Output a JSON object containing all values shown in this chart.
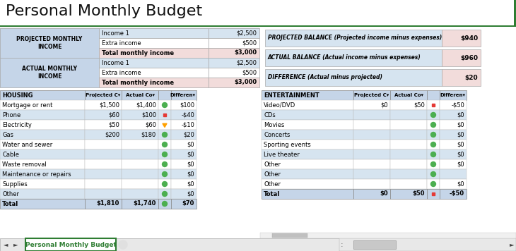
{
  "title": "Personal Monthly Budget",
  "bg_color": "#FFFFFF",
  "tab_color": "#2E7D32",
  "tab_text": "Personal Monthly Budget",
  "header_blue": "#C5D5E8",
  "light_blue": "#D6E4F0",
  "pink_row": "#F2DCDB",
  "white": "#FFFFFF",
  "dark_border": "#2E7D32",
  "projected_income_rows": [
    [
      "Income 1",
      "$2,500",
      false
    ],
    [
      "Extra income",
      "$500",
      false
    ],
    [
      "Total monthly income",
      "$3,000",
      true
    ]
  ],
  "actual_income_rows": [
    [
      "Income 1",
      "$2,500",
      false
    ],
    [
      "Extra income",
      "$500",
      false
    ],
    [
      "Total monthly income",
      "$3,000",
      true
    ]
  ],
  "balance_rows": [
    [
      "PROJECTED BALANCE (Projected income minus expenses)",
      "$940"
    ],
    [
      "ACTUAL BALANCE (Actual income minus expenses)",
      "$960"
    ],
    [
      "DIFFERENCE (Actual minus projected)",
      "$20"
    ]
  ],
  "housing_header": [
    "HOUSING",
    "Projected C▾",
    "Actual Co▾",
    "Differen▾"
  ],
  "housing_rows": [
    [
      "Mortgage or rent",
      "$1,500",
      "$1,400",
      "green",
      "$100"
    ],
    [
      "Phone",
      "$60",
      "$100",
      "red",
      "-$40"
    ],
    [
      "Electricity",
      "$50",
      "$60",
      "yellow",
      "-$10"
    ],
    [
      "Gas",
      "$200",
      "$180",
      "green",
      "$20"
    ],
    [
      "Water and sewer",
      "",
      "",
      "green",
      "$0"
    ],
    [
      "Cable",
      "",
      "",
      "green",
      "$0"
    ],
    [
      "Waste removal",
      "",
      "",
      "green",
      "$0"
    ],
    [
      "Maintenance or repairs",
      "",
      "",
      "green",
      "$0"
    ],
    [
      "Supplies",
      "",
      "",
      "green",
      "$0"
    ],
    [
      "Other",
      "",
      "",
      "green",
      "$0"
    ]
  ],
  "housing_total": [
    "Total",
    "$1,810",
    "$1,740",
    "green",
    "$70"
  ],
  "entertainment_header": [
    "ENTERTAINMENT",
    "Projected C▾",
    "Actual Co▾",
    "Differen▾"
  ],
  "entertainment_rows": [
    [
      "Video/DVD",
      "$0",
      "$50",
      "red",
      "-$50"
    ],
    [
      "CDs",
      "",
      "",
      "green",
      "$0"
    ],
    [
      "Movies",
      "",
      "",
      "green",
      "$0"
    ],
    [
      "Concerts",
      "",
      "",
      "green",
      "$0"
    ],
    [
      "Sporting events",
      "",
      "",
      "green",
      "$0"
    ],
    [
      "Live theater",
      "",
      "",
      "green",
      "$0"
    ],
    [
      "Other",
      "",
      "",
      "green",
      "$0"
    ],
    [
      "Other",
      "",
      "",
      "green",
      ""
    ],
    [
      "Other",
      "",
      "",
      "green",
      "$0"
    ]
  ],
  "entertainment_total": [
    "Total",
    "$0",
    "$50",
    "red",
    "-$50"
  ],
  "title_fontsize": 16,
  "body_fontsize": 6,
  "header_fontsize": 6,
  "small_fontsize": 5.5
}
